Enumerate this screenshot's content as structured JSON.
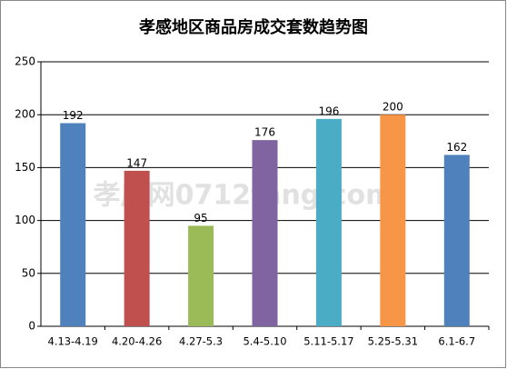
{
  "chart_data": {
    "type": "bar",
    "title": "孝感地区商品房成交套数趋势图",
    "categories": [
      "4.13-4.19",
      "4.20-4.26",
      "4.27-5.3",
      "5.4-5.10",
      "5.11-5.17",
      "5.25-5.31",
      "6.1-6.7"
    ],
    "values": [
      192,
      147,
      95,
      176,
      196,
      200,
      162
    ],
    "colors": [
      "#4f81bd",
      "#c0504d",
      "#9bbb59",
      "#8064a2",
      "#4bacc6",
      "#f79646",
      "#4f81bd"
    ],
    "ylim": [
      0,
      250
    ],
    "yticks": [
      0,
      50,
      100,
      150,
      200,
      250
    ],
    "grid": true,
    "watermark": "孝房网0712fang.com"
  }
}
